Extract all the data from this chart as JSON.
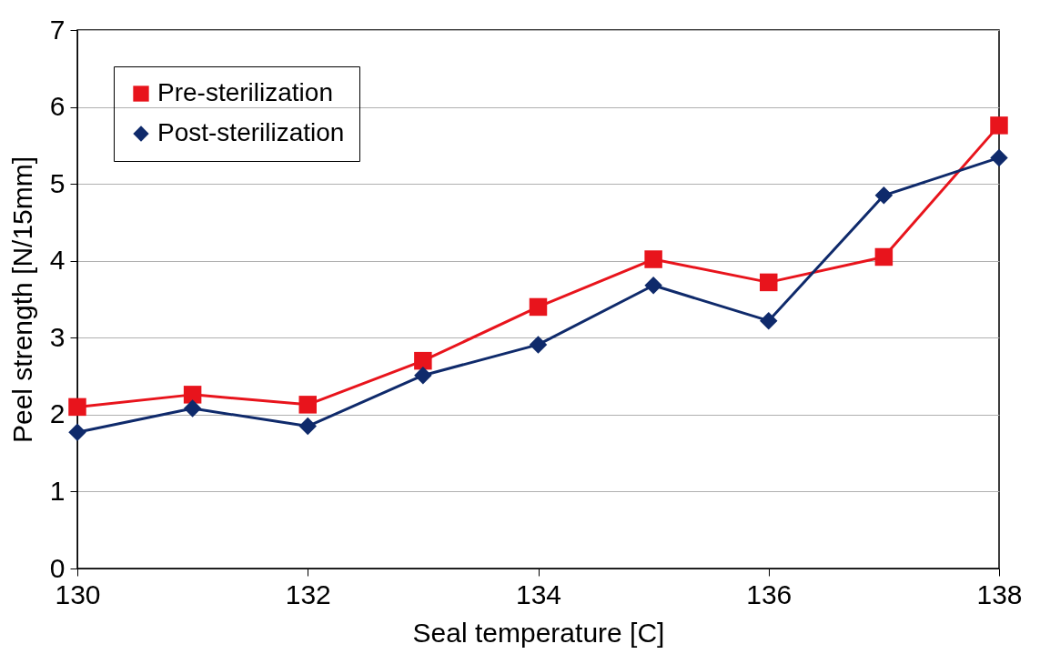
{
  "chart_data": {
    "type": "line",
    "xlabel": "Seal temperature [C]",
    "ylabel": "Peel strength [N/15mm]",
    "x": [
      130,
      131,
      132,
      133,
      134,
      135,
      136,
      137,
      138
    ],
    "series": [
      {
        "name": "Pre-sterilization",
        "color": "#e8141c",
        "marker": "square",
        "values": [
          2.1,
          2.26,
          2.13,
          2.7,
          3.4,
          4.02,
          3.72,
          4.05,
          5.76
        ]
      },
      {
        "name": "Post-sterilization",
        "color": "#0f2a6b",
        "marker": "diamond",
        "values": [
          1.77,
          2.08,
          1.85,
          2.51,
          2.91,
          3.68,
          3.22,
          4.85,
          5.34
        ]
      }
    ],
    "xlim": [
      130,
      138
    ],
    "xticks": [
      130,
      132,
      134,
      136,
      138
    ],
    "ylim": [
      0,
      7
    ],
    "yticks": [
      0,
      1,
      2,
      3,
      4,
      5,
      6,
      7
    ],
    "grid": "y",
    "legend": "top left",
    "line_style": "solid"
  }
}
